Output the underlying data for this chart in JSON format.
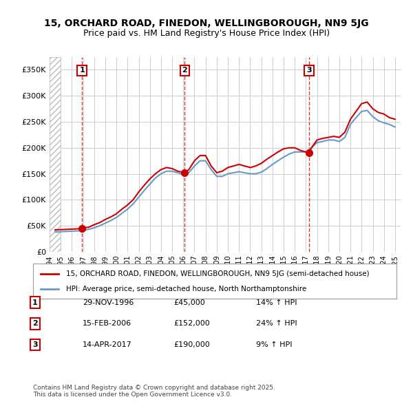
{
  "title_line1": "15, ORCHARD ROAD, FINEDON, WELLINGBOROUGH, NN9 5JG",
  "title_line2": "Price paid vs. HM Land Registry's House Price Index (HPI)",
  "legend_label_red": "15, ORCHARD ROAD, FINEDON, WELLINGBOROUGH, NN9 5JG (semi-detached house)",
  "legend_label_blue": "HPI: Average price, semi-detached house, North Northamptonshire",
  "footer": "Contains HM Land Registry data © Crown copyright and database right 2025.\nThis data is licensed under the Open Government Licence v3.0.",
  "transactions": [
    {
      "num": 1,
      "date": "29-NOV-1996",
      "price": "£45,000",
      "hpi": "14% ↑ HPI",
      "year": 1996.91
    },
    {
      "num": 2,
      "date": "15-FEB-2006",
      "price": "£152,000",
      "hpi": "24% ↑ HPI",
      "year": 2006.12
    },
    {
      "num": 3,
      "date": "14-APR-2017",
      "price": "£190,000",
      "hpi": "9% ↑ HPI",
      "year": 2017.29
    }
  ],
  "red_line_x": [
    1994.5,
    1995.0,
    1995.5,
    1996.0,
    1996.5,
    1996.91,
    1997.0,
    1997.5,
    1998.0,
    1998.5,
    1999.0,
    1999.5,
    2000.0,
    2000.5,
    2001.0,
    2001.5,
    2002.0,
    2002.5,
    2003.0,
    2003.5,
    2004.0,
    2004.5,
    2005.0,
    2005.5,
    2006.12,
    2006.5,
    2007.0,
    2007.5,
    2008.0,
    2008.5,
    2009.0,
    2009.5,
    2010.0,
    2010.5,
    2011.0,
    2011.5,
    2012.0,
    2012.5,
    2013.0,
    2013.5,
    2014.0,
    2014.5,
    2015.0,
    2015.5,
    2016.0,
    2016.5,
    2017.29,
    2017.5,
    2018.0,
    2018.5,
    2019.0,
    2019.5,
    2020.0,
    2020.5,
    2021.0,
    2021.5,
    2022.0,
    2022.5,
    2023.0,
    2023.5,
    2024.0,
    2024.5,
    2025.0
  ],
  "red_line_y": [
    42000,
    42500,
    43000,
    43500,
    44000,
    45000,
    46000,
    47000,
    52000,
    56000,
    62000,
    67000,
    73000,
    82000,
    90000,
    100000,
    115000,
    128000,
    140000,
    150000,
    158000,
    162000,
    160000,
    155000,
    152000,
    158000,
    175000,
    185000,
    185000,
    165000,
    152000,
    155000,
    162000,
    165000,
    168000,
    165000,
    162000,
    165000,
    170000,
    178000,
    185000,
    192000,
    198000,
    200000,
    200000,
    195000,
    190000,
    200000,
    215000,
    218000,
    220000,
    222000,
    220000,
    230000,
    255000,
    270000,
    285000,
    288000,
    275000,
    268000,
    265000,
    258000,
    255000
  ],
  "blue_line_x": [
    1994.5,
    1995.0,
    1995.5,
    1996.0,
    1996.5,
    1997.0,
    1997.5,
    1998.0,
    1998.5,
    1999.0,
    1999.5,
    2000.0,
    2000.5,
    2001.0,
    2001.5,
    2002.0,
    2002.5,
    2003.0,
    2003.5,
    2004.0,
    2004.5,
    2005.0,
    2005.5,
    2006.0,
    2006.5,
    2007.0,
    2007.5,
    2008.0,
    2008.5,
    2009.0,
    2009.5,
    2010.0,
    2010.5,
    2011.0,
    2011.5,
    2012.0,
    2012.5,
    2013.0,
    2013.5,
    2014.0,
    2014.5,
    2015.0,
    2015.5,
    2016.0,
    2016.5,
    2017.0,
    2017.5,
    2018.0,
    2018.5,
    2019.0,
    2019.5,
    2020.0,
    2020.5,
    2021.0,
    2021.5,
    2022.0,
    2022.5,
    2023.0,
    2023.5,
    2024.0,
    2024.5,
    2025.0
  ],
  "blue_line_y": [
    38000,
    38500,
    39000,
    39500,
    40000,
    41000,
    43000,
    46000,
    50000,
    55000,
    60000,
    66000,
    74000,
    82000,
    92000,
    105000,
    118000,
    130000,
    142000,
    150000,
    155000,
    155000,
    152000,
    148000,
    152000,
    165000,
    175000,
    175000,
    158000,
    145000,
    145000,
    150000,
    152000,
    154000,
    152000,
    150000,
    150000,
    153000,
    160000,
    168000,
    175000,
    182000,
    188000,
    192000,
    192000,
    192000,
    200000,
    210000,
    212000,
    215000,
    215000,
    212000,
    220000,
    245000,
    258000,
    270000,
    272000,
    260000,
    252000,
    248000,
    245000,
    240000
  ],
  "xlim": [
    1994.0,
    2025.5
  ],
  "ylim": [
    0,
    375000
  ],
  "yticks": [
    0,
    50000,
    100000,
    150000,
    200000,
    250000,
    300000,
    350000
  ],
  "ytick_labels": [
    "£0",
    "£50K",
    "£100K",
    "£150K",
    "£200K",
    "£250K",
    "£300K",
    "£350K"
  ],
  "xticks": [
    1994,
    1995,
    1996,
    1997,
    1998,
    1999,
    2000,
    2001,
    2002,
    2003,
    2004,
    2005,
    2006,
    2007,
    2008,
    2009,
    2010,
    2011,
    2012,
    2013,
    2014,
    2015,
    2016,
    2017,
    2018,
    2019,
    2020,
    2021,
    2022,
    2023,
    2024,
    2025
  ],
  "hatch_region_end": 1995.0,
  "red_color": "#cc0000",
  "blue_color": "#6699cc",
  "hatch_color": "#aaaaaa",
  "grid_color": "#cccccc",
  "box_color": "#cc0000",
  "transaction_dot_color": "#cc0000",
  "transaction_vline_color": "#cc0000",
  "bg_color": "#ffffff",
  "plot_bg_color": "#ffffff"
}
